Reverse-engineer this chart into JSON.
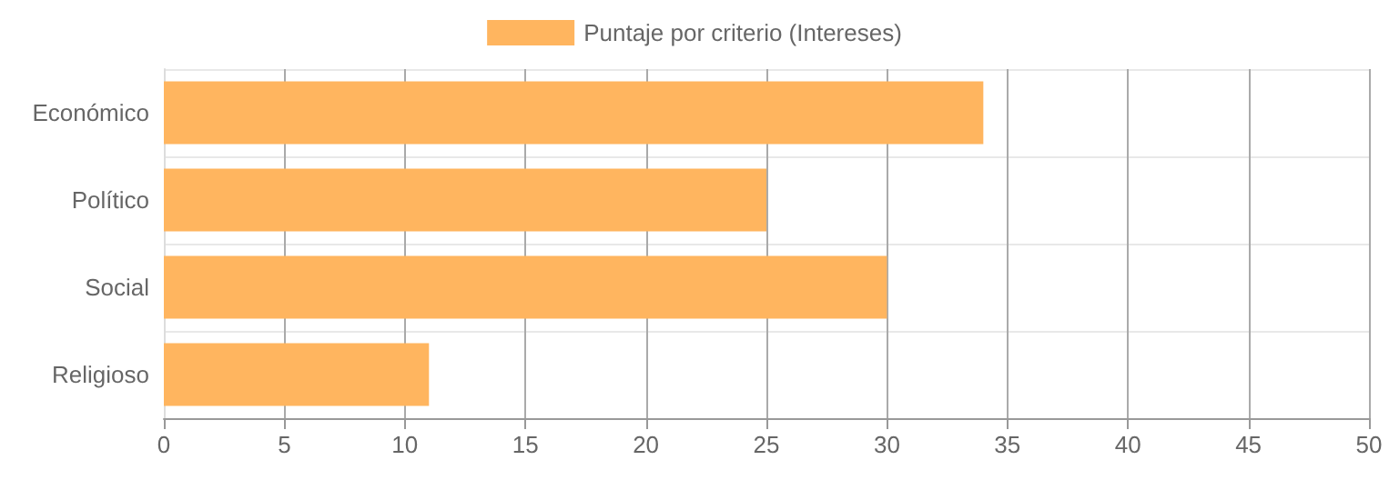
{
  "chart_data": {
    "type": "bar",
    "orientation": "horizontal",
    "categories": [
      "Económico",
      "Político",
      "Social",
      "Religioso"
    ],
    "series": [
      {
        "name": "Puntaje por criterio (Intereses)",
        "color": "#ffb55f",
        "values": [
          34,
          25,
          30,
          11
        ]
      }
    ],
    "xlim": [
      0,
      50
    ],
    "xticks": [
      0,
      5,
      10,
      15,
      20,
      25,
      30,
      35,
      40,
      45,
      50
    ],
    "grid": true,
    "legend": "top"
  }
}
